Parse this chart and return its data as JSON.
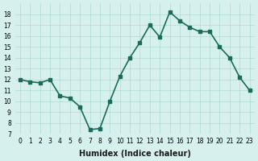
{
  "x": [
    0,
    1,
    2,
    3,
    4,
    5,
    6,
    7,
    8,
    9,
    10,
    11,
    12,
    13,
    14,
    15,
    16,
    17,
    18,
    19,
    20,
    21,
    22,
    23
  ],
  "y": [
    12.0,
    11.8,
    11.7,
    12.0,
    10.5,
    10.3,
    9.5,
    7.4,
    7.5,
    10.0,
    12.3,
    14.0,
    15.4,
    17.0,
    15.9,
    18.2,
    17.4,
    16.8,
    16.4,
    16.4,
    15.0,
    14.0,
    12.2,
    11.0
  ],
  "line_color": "#1a6b5a",
  "marker": "s",
  "marker_size": 3,
  "linewidth": 1.2,
  "xlabel": "Humidex (Indice chaleur)",
  "xlim": [
    -0.5,
    23.5
  ],
  "ylim": [
    7,
    19
  ],
  "yticks": [
    7,
    8,
    9,
    10,
    11,
    12,
    13,
    14,
    15,
    16,
    17,
    18
  ],
  "xtick_labels": [
    "0",
    "1",
    "2",
    "3",
    "4",
    "5",
    "6",
    "7",
    "8",
    "9",
    "10",
    "11",
    "12",
    "13",
    "14",
    "15",
    "16",
    "17",
    "18",
    "19",
    "20",
    "21",
    "22",
    "23"
  ],
  "bg_color": "#d6f0ee",
  "grid_color": "#b0d8d4"
}
